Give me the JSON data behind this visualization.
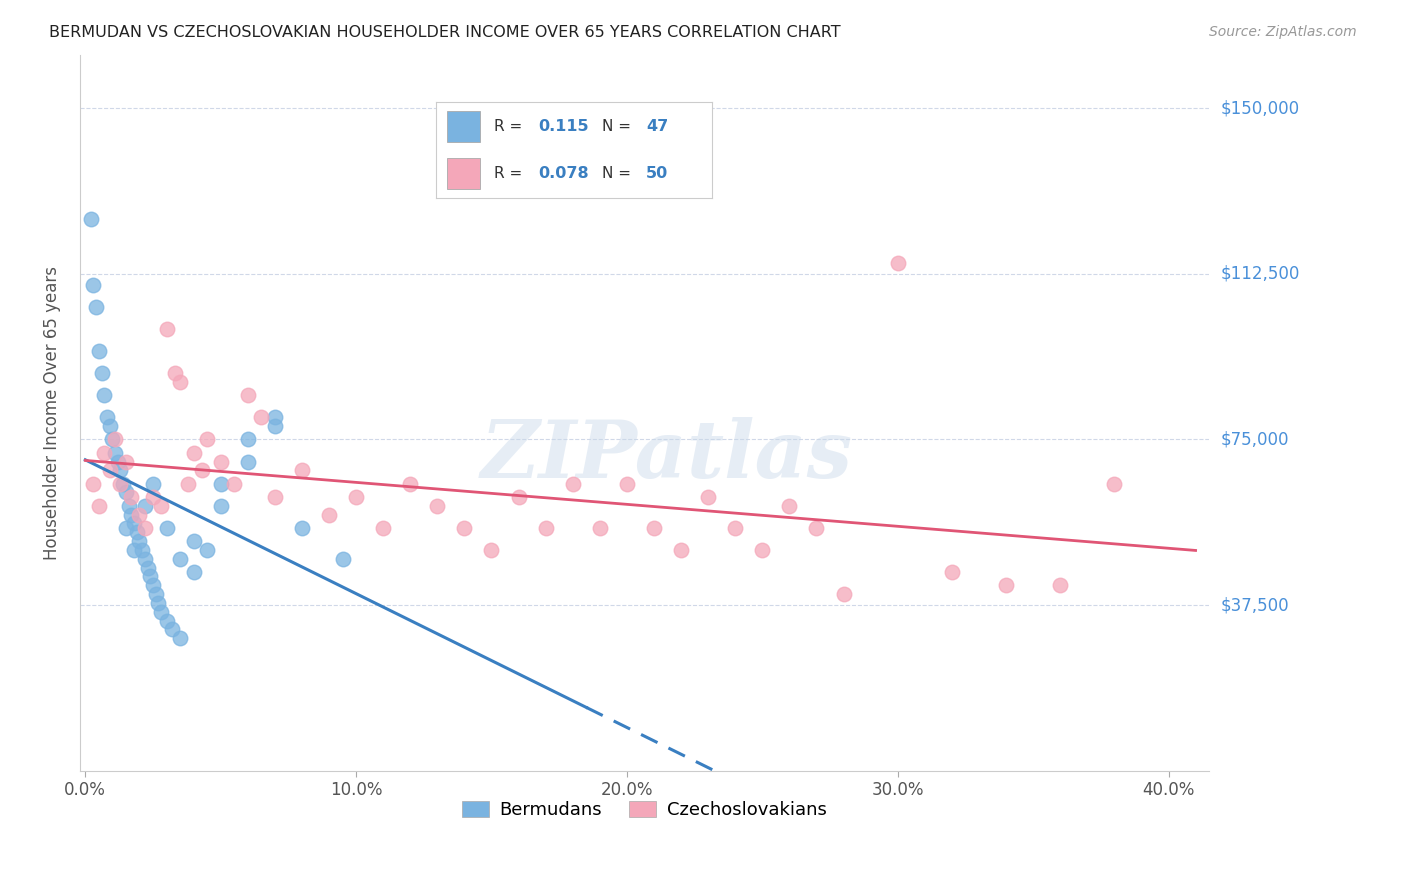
{
  "title": "BERMUDAN VS CZECHOSLOVAKIAN HOUSEHOLDER INCOME OVER 65 YEARS CORRELATION CHART",
  "source": "Source: ZipAtlas.com",
  "ylabel": "Householder Income Over 65 years",
  "xlabel_ticks": [
    "0.0%",
    "10.0%",
    "20.0%",
    "30.0%",
    "40.0%"
  ],
  "xlabel_vals": [
    0.0,
    0.1,
    0.2,
    0.3,
    0.4
  ],
  "ytick_labels": [
    "$37,500",
    "$75,000",
    "$112,500",
    "$150,000"
  ],
  "ytick_vals": [
    37500,
    75000,
    112500,
    150000
  ],
  "ylim": [
    0,
    162000
  ],
  "xlim": [
    -0.002,
    0.415
  ],
  "watermark": "ZIPatlas",
  "legend_label1": "Bermudans",
  "legend_label2": "Czechoslovakians",
  "R1": 0.115,
  "N1": 47,
  "R2": 0.078,
  "N2": 50,
  "bermudan_color": "#7ab3e0",
  "czechoslovakian_color": "#f4a7b9",
  "trendline1_color": "#3a7fc1",
  "trendline2_color": "#e05575",
  "right_label_color": "#4a90d9",
  "background_color": "#ffffff",
  "grid_color": "#d0d8e8",
  "bermudan_x": [
    0.002,
    0.003,
    0.004,
    0.005,
    0.006,
    0.007,
    0.008,
    0.009,
    0.01,
    0.011,
    0.012,
    0.013,
    0.014,
    0.015,
    0.016,
    0.017,
    0.018,
    0.019,
    0.02,
    0.021,
    0.022,
    0.023,
    0.024,
    0.025,
    0.026,
    0.027,
    0.028,
    0.03,
    0.032,
    0.035,
    0.04,
    0.045,
    0.05,
    0.06,
    0.07,
    0.08,
    0.095,
    0.015,
    0.018,
    0.022,
    0.025,
    0.03,
    0.035,
    0.04,
    0.05,
    0.06,
    0.07
  ],
  "bermudan_y": [
    125000,
    110000,
    105000,
    95000,
    90000,
    85000,
    80000,
    78000,
    75000,
    72000,
    70000,
    68000,
    65000,
    63000,
    60000,
    58000,
    56000,
    54000,
    52000,
    50000,
    48000,
    46000,
    44000,
    42000,
    40000,
    38000,
    36000,
    34000,
    32000,
    30000,
    45000,
    50000,
    65000,
    75000,
    80000,
    55000,
    48000,
    55000,
    50000,
    60000,
    65000,
    55000,
    48000,
    52000,
    60000,
    70000,
    78000
  ],
  "czechoslovakian_x": [
    0.003,
    0.005,
    0.007,
    0.009,
    0.011,
    0.013,
    0.015,
    0.017,
    0.02,
    0.022,
    0.025,
    0.028,
    0.03,
    0.033,
    0.035,
    0.038,
    0.04,
    0.043,
    0.045,
    0.05,
    0.055,
    0.06,
    0.065,
    0.07,
    0.08,
    0.09,
    0.1,
    0.11,
    0.12,
    0.13,
    0.14,
    0.15,
    0.16,
    0.17,
    0.18,
    0.19,
    0.2,
    0.21,
    0.22,
    0.23,
    0.24,
    0.25,
    0.26,
    0.27,
    0.28,
    0.3,
    0.32,
    0.34,
    0.36,
    0.38
  ],
  "czechoslovakian_y": [
    65000,
    60000,
    72000,
    68000,
    75000,
    65000,
    70000,
    62000,
    58000,
    55000,
    62000,
    60000,
    100000,
    90000,
    88000,
    65000,
    72000,
    68000,
    75000,
    70000,
    65000,
    85000,
    80000,
    62000,
    68000,
    58000,
    62000,
    55000,
    65000,
    60000,
    55000,
    50000,
    62000,
    55000,
    65000,
    55000,
    65000,
    55000,
    50000,
    62000,
    55000,
    50000,
    60000,
    55000,
    40000,
    115000,
    45000,
    42000,
    42000,
    65000
  ]
}
